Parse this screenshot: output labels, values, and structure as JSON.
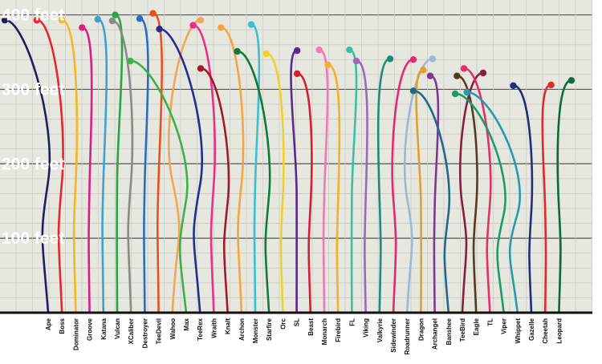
{
  "chart_data": {
    "type": "line",
    "ylabel": "",
    "yticks": [
      {
        "value": 100,
        "label": "100 feet"
      },
      {
        "value": 200,
        "label": "200 feet"
      },
      {
        "value": 300,
        "label": "300 feet"
      },
      {
        "value": 400,
        "label": "400 feet"
      }
    ],
    "ylim": [
      0,
      420
    ],
    "grid": true,
    "background_color": "#e6e7df",
    "curves": [
      {
        "name": "Ape",
        "color": "#1e1e5a",
        "start": 0.0,
        "apex": 393,
        "lean": 0.2
      },
      {
        "name": "Boss",
        "color": "#e5262a",
        "start": 0.055,
        "apex": 393,
        "lean": 0.2
      },
      {
        "name": "Dominator",
        "color": "#f2b722",
        "start": 0.098,
        "apex": 393,
        "lean": 0.2
      },
      {
        "name": "Groove",
        "color": "#d81f86",
        "start": 0.133,
        "apex": 383,
        "lean": 0.15
      },
      {
        "name": "Katana",
        "color": "#3aa3d4",
        "start": 0.16,
        "apex": 394,
        "lean": 0.3
      },
      {
        "name": "Vulcan",
        "color": "#2aa542",
        "start": 0.19,
        "apex": 400,
        "lean": 0.3
      },
      {
        "name": "XCaliber",
        "color": "#8a8a8a",
        "start": 0.185,
        "apex": 392,
        "lean": 0.25
      },
      {
        "name": "Destroyer",
        "color": "#2a6cc0",
        "start": 0.232,
        "apex": 395,
        "lean": 0.25
      },
      {
        "name": "TeeDevil",
        "color": "#e8501e",
        "start": 0.255,
        "apex": 402,
        "lean": 0.35
      },
      {
        "name": "Wahoo",
        "color": "#f2a65a",
        "start": 0.337,
        "apex": 393,
        "lean": 0.45
      },
      {
        "name": "Max",
        "color": "#3cb04a",
        "start": 0.216,
        "apex": 338,
        "lean": 0.15
      },
      {
        "name": "TeeRex",
        "color": "#1f2f8a",
        "start": 0.266,
        "apex": 381,
        "lean": 0.25
      },
      {
        "name": "Wraith",
        "color": "#e8308a",
        "start": 0.324,
        "apex": 386,
        "lean": 0.2
      },
      {
        "name": "Knalt",
        "color": "#a01a28",
        "start": 0.337,
        "apex": 328,
        "lean": 0.2
      },
      {
        "name": "Archon",
        "color": "#f5a53c",
        "start": 0.372,
        "apex": 383,
        "lean": 0.3
      },
      {
        "name": "Monster",
        "color": "#3cbfd0",
        "start": 0.424,
        "apex": 387,
        "lean": 0.35
      },
      {
        "name": "Starfire",
        "color": "#0e7a3c",
        "start": 0.4,
        "apex": 351,
        "lean": 0.15
      },
      {
        "name": "Orc",
        "color": "#f2d02a",
        "start": 0.45,
        "apex": 348,
        "lean": 0.15
      },
      {
        "name": "SL",
        "color": "#5a2a8a",
        "start": 0.503,
        "apex": 352,
        "lean": 0.15
      },
      {
        "name": "Beast",
        "color": "#d41e32",
        "start": 0.503,
        "apex": 321,
        "lean": 0.2
      },
      {
        "name": "Monarch",
        "color": "#f07ab4",
        "start": 0.541,
        "apex": 353,
        "lean": 0.25
      },
      {
        "name": "Firebird",
        "color": "#f5b02a",
        "start": 0.556,
        "apex": 333,
        "lean": 0.15
      },
      {
        "name": "FL",
        "color": "#3ac0a2",
        "start": 0.593,
        "apex": 353,
        "lean": 0.2
      },
      {
        "name": "Viking",
        "color": "#9a6ab4",
        "start": 0.605,
        "apex": 338,
        "lean": 0.15
      },
      {
        "name": "Valkyrie",
        "color": "#1e8a7a",
        "start": 0.663,
        "apex": 341,
        "lean": 0.15
      },
      {
        "name": "Sidewinder",
        "color": "#e02a72",
        "start": 0.703,
        "apex": 340,
        "lean": 0.2
      },
      {
        "name": "Roadrunner",
        "color": "#9ab8d8",
        "start": 0.736,
        "apex": 341,
        "lean": 0.35
      },
      {
        "name": "Dragon",
        "color": "#e0a030",
        "start": 0.72,
        "apex": 326,
        "lean": 0.2
      },
      {
        "name": "Archangel",
        "color": "#7a3a90",
        "start": 0.732,
        "apex": 318,
        "lean": 0.2
      },
      {
        "name": "Banshee",
        "color": "#1f6a88",
        "start": 0.703,
        "apex": 298,
        "lean": 0.15
      },
      {
        "name": "TeeBird",
        "color": "#8a1e40",
        "start": 0.823,
        "apex": 322,
        "lean": 0.35
      },
      {
        "name": "Eagle",
        "color": "#5a3a1e",
        "start": 0.778,
        "apex": 318,
        "lean": 0.2
      },
      {
        "name": "TL",
        "color": "#e0306a",
        "start": 0.79,
        "apex": 328,
        "lean": 0.15
      },
      {
        "name": "Viper",
        "color": "#1e9a6a",
        "start": 0.775,
        "apex": 294,
        "lean": 0.2
      },
      {
        "name": "Whippet",
        "color": "#2a9aa8",
        "start": 0.795,
        "apex": 296,
        "lean": 0.25
      },
      {
        "name": "Gazelle",
        "color": "#1f2f7a",
        "start": 0.875,
        "apex": 305,
        "lean": 0.15
      },
      {
        "name": "Cheetah",
        "color": "#e02a2a",
        "start": 0.94,
        "apex": 306,
        "lean": 0.15
      },
      {
        "name": "Leopard",
        "color": "#0e6a3a",
        "start": 0.975,
        "apex": 312,
        "lean": 0.2
      }
    ]
  }
}
